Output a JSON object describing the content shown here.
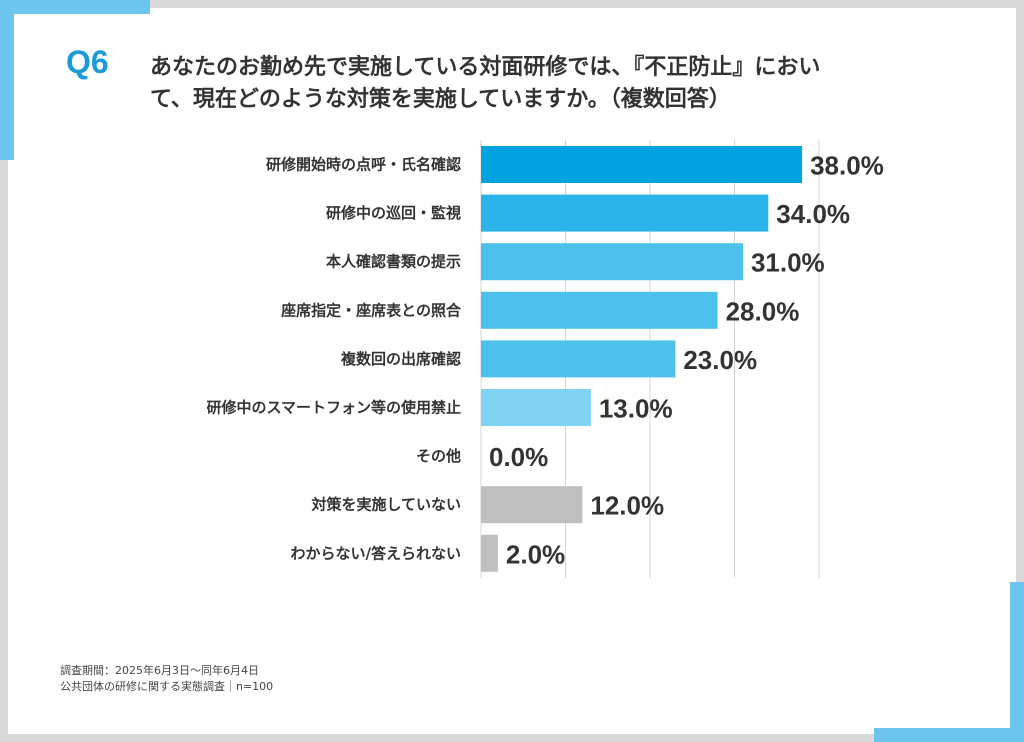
{
  "header": {
    "badge": "Q6",
    "question_line1": "あなたのお勤め先で実施している対面研修では、『不正防止』におい",
    "question_line2": "て、現在どのような対策を実施していますか。（複数回答）"
  },
  "chart_data": {
    "type": "bar",
    "orientation": "horizontal",
    "categories": [
      "研修開始時の点呼・氏名確認",
      "研修中の巡回・監視",
      "本人確認書類の提示",
      "座席指定・座席表との照合",
      "複数回の出席確認",
      "研修中のスマートフォン等の使用禁止",
      "その他",
      "対策を実施していない",
      "わからない/答えられない"
    ],
    "values": [
      38.0,
      34.0,
      31.0,
      28.0,
      23.0,
      13.0,
      0.0,
      12.0,
      2.0
    ],
    "value_labels": [
      "38.0%",
      "34.0%",
      "31.0%",
      "28.0%",
      "23.0%",
      "13.0%",
      "0.0%",
      "12.0%",
      "2.0%"
    ],
    "bar_colors": [
      "#00a3e0",
      "#2ab4ea",
      "#4cc1ec",
      "#4cc1ec",
      "#4cc1ec",
      "#80d3f3",
      "#80d3f3",
      "#bfbfbf",
      "#bfbfbf"
    ],
    "xlim": [
      0,
      40
    ],
    "grid": true
  },
  "footer": {
    "line1": "調査期間：2025年6月3日～同年6月4日",
    "line2": "公共団体の研修に関する実態調査｜n=100"
  }
}
